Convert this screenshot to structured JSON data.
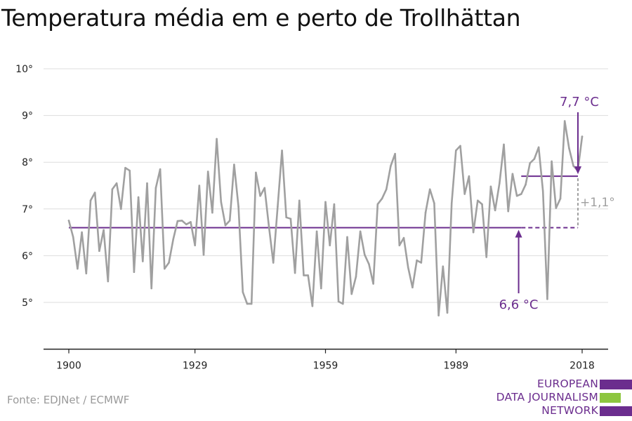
{
  "title": "Temperatura média em e perto de Trollhättan",
  "source": "Fonte: EDJNet / ECMWF",
  "logo": {
    "lines": [
      "EUROPEAN",
      "DATA JOURNALISM",
      "NETWORK"
    ],
    "colors": [
      "#6b2d8e",
      "#8dc63f",
      "#6b2d8e"
    ]
  },
  "colors": {
    "series": "#a0a0a0",
    "accent": "#6b2d8e",
    "delta": "#a0a0a0",
    "grid": "#dddddd",
    "axis": "#222222"
  },
  "chart_data": {
    "type": "line",
    "title": "Temperatura média em e perto de Trollhättan",
    "xlabel": "",
    "ylabel": "",
    "xlim": [
      1900,
      2018
    ],
    "ylim": [
      4,
      10
    ],
    "x_ticks": [
      1900,
      1929,
      1959,
      1989,
      2018
    ],
    "x_tick_labels": [
      "1900",
      "1929",
      "1959",
      "1989",
      "2018"
    ],
    "y_ticks": [
      5,
      6,
      7,
      8,
      9,
      10
    ],
    "y_tick_labels": [
      "5°",
      "6°",
      "7°",
      "8°",
      "9°",
      "10°"
    ],
    "grid": true,
    "x": [
      1900,
      1901,
      1902,
      1903,
      1904,
      1905,
      1906,
      1907,
      1908,
      1909,
      1910,
      1911,
      1912,
      1913,
      1914,
      1915,
      1916,
      1917,
      1918,
      1919,
      1920,
      1921,
      1922,
      1923,
      1924,
      1925,
      1926,
      1927,
      1928,
      1929,
      1930,
      1931,
      1932,
      1933,
      1934,
      1935,
      1936,
      1937,
      1938,
      1939,
      1940,
      1941,
      1942,
      1943,
      1944,
      1945,
      1946,
      1947,
      1948,
      1949,
      1950,
      1951,
      1952,
      1953,
      1954,
      1955,
      1956,
      1957,
      1958,
      1959,
      1960,
      1961,
      1962,
      1963,
      1964,
      1965,
      1966,
      1967,
      1968,
      1969,
      1970,
      1971,
      1972,
      1973,
      1974,
      1975,
      1976,
      1977,
      1978,
      1979,
      1980,
      1981,
      1982,
      1983,
      1984,
      1985,
      1986,
      1987,
      1988,
      1989,
      1990,
      1991,
      1992,
      1993,
      1994,
      1995,
      1996,
      1997,
      1998,
      1999,
      2000,
      2001,
      2002,
      2003,
      2004,
      2005,
      2006,
      2007,
      2008,
      2009,
      2010,
      2011,
      2012,
      2013,
      2014,
      2015,
      2016,
      2017,
      2018
    ],
    "series": [
      {
        "values": [
          6.75,
          6.4,
          5.72,
          6.5,
          5.62,
          7.18,
          7.35,
          6.1,
          6.55,
          5.45,
          7.42,
          7.55,
          7.0,
          7.88,
          7.82,
          5.65,
          7.25,
          5.88,
          7.55,
          5.3,
          7.45,
          7.85,
          5.72,
          5.85,
          6.35,
          6.74,
          6.75,
          6.67,
          6.72,
          6.22,
          7.5,
          6.02,
          7.8,
          6.92,
          8.5,
          7.15,
          6.65,
          6.75,
          7.95,
          7.05,
          5.22,
          4.97,
          4.97,
          7.78,
          7.28,
          7.45,
          6.62,
          5.85,
          7.05,
          8.25,
          6.82,
          6.79,
          5.63,
          7.18,
          5.58,
          5.58,
          4.92,
          6.52,
          5.3,
          7.15,
          6.22,
          7.1,
          5.02,
          4.97,
          6.4,
          5.18,
          5.55,
          6.52,
          6.02,
          5.82,
          5.4,
          7.1,
          7.22,
          7.42,
          7.92,
          8.18,
          6.22,
          6.38,
          5.75,
          5.32,
          5.9,
          5.85,
          6.92,
          7.42,
          7.12,
          4.72,
          5.77,
          4.78,
          7.12,
          8.25,
          8.35,
          7.32,
          7.7,
          6.5,
          7.18,
          7.1,
          5.97,
          7.48,
          6.97,
          7.55,
          8.38,
          6.95,
          7.75,
          7.28,
          7.32,
          7.52,
          7.98,
          8.07,
          8.32,
          7.38,
          5.07,
          8.02,
          7.02,
          7.22,
          8.88,
          8.3,
          7.92,
          7.82,
          8.55
        ]
      }
    ],
    "reference_lines": [
      {
        "label": "6,6 °C",
        "value": 6.6,
        "x_start": 1900,
        "x_end": 2018,
        "solid_until": 2004
      },
      {
        "label": "7,7 °C",
        "value": 7.7,
        "x_start": 2004,
        "x_end": 2018
      }
    ],
    "annotations": {
      "delta_label": "+1,1°",
      "low_label": "6,6 °C",
      "high_label": "7,7 °C"
    }
  }
}
